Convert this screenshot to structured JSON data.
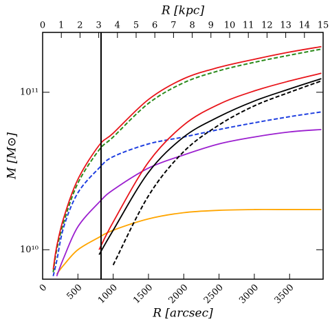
{
  "chart_data": {
    "type": "line",
    "xlabel": "R [arcsec]",
    "x2label": "R [kpc]",
    "ylabel": "M [M⊙]",
    "ylog": true,
    "xlim": [
      0,
      3975
    ],
    "xticks": [
      0,
      500,
      1000,
      1500,
      2000,
      2500,
      3000,
      3500
    ],
    "x2lim": [
      0,
      15
    ],
    "x2ticks": [
      0,
      1,
      2,
      3,
      4,
      5,
      6,
      7,
      8,
      9,
      10,
      11,
      12,
      13,
      14,
      15
    ],
    "ylim": [
      6500000000.0,
      240000000000.0
    ],
    "yticks": [
      {
        "value": 10000000000.0,
        "label": "10¹⁰"
      },
      {
        "value": 100000000000.0,
        "label": "10¹¹"
      }
    ],
    "vline": 828,
    "x": [
      150,
      200,
      300,
      500,
      800,
      1000,
      1500,
      2000,
      2500,
      3000,
      3500,
      3950
    ],
    "series": [
      {
        "color": "#ffa500",
        "dash": false,
        "values": [
          null,
          7000000000.0,
          8000000000.0,
          10000000000.0,
          12000000000.0,
          13300000000.0,
          15700000000.0,
          17200000000.0,
          17800000000.0,
          18000000000.0,
          18000000000.0,
          18000000000.0
        ]
      },
      {
        "color": "#9b1fcf",
        "dash": false,
        "values": [
          null,
          6800000000.0,
          8900000000.0,
          14000000000.0,
          20000000000.0,
          24000000000.0,
          33000000000.0,
          40000000000.0,
          47000000000.0,
          52000000000.0,
          56000000000.0,
          58000000000.0
        ]
      },
      {
        "color": "#1f3fe0",
        "dash": true,
        "values": [
          6800000000.0,
          8500000000.0,
          14000000000.0,
          23000000000.0,
          33000000000.0,
          39000000000.0,
          47000000000.0,
          52000000000.0,
          58000000000.0,
          64000000000.0,
          70000000000.0,
          75000000000.0
        ]
      },
      {
        "color": "#000000",
        "dash": true,
        "values": [
          null,
          null,
          null,
          null,
          null,
          8000000000.0,
          22000000000.0,
          42000000000.0,
          62000000000.0,
          82000000000.0,
          100000000000.0,
          118000000000.0
        ]
      },
      {
        "color": "#000000",
        "dash": false,
        "values": [
          null,
          null,
          null,
          null,
          9300000000.0,
          13300000000.0,
          31000000000.0,
          52000000000.0,
          70000000000.0,
          88000000000.0,
          105000000000.0,
          122000000000.0
        ]
      },
      {
        "color": "#e8141a",
        "dash": false,
        "values": [
          null,
          null,
          null,
          null,
          10000000000.0,
          15000000000.0,
          36000000000.0,
          62000000000.0,
          84000000000.0,
          102000000000.0,
          118000000000.0,
          132000000000.0
        ]
      },
      {
        "color": "#2a8a1a",
        "dash": true,
        "values": [
          7200000000.0,
          10000000000.0,
          15000000000.0,
          26500000000.0,
          43000000000.0,
          52000000000.0,
          85000000000.0,
          115000000000.0,
          137000000000.0,
          155000000000.0,
          172000000000.0,
          188000000000.0
        ]
      },
      {
        "color": "#e8141a",
        "dash": false,
        "values": [
          7500000000.0,
          10500000000.0,
          16000000000.0,
          28000000000.0,
          46000000000.0,
          55000000000.0,
          90000000000.0,
          122000000000.0,
          144000000000.0,
          162000000000.0,
          180000000000.0,
          195000000000.0
        ]
      }
    ]
  }
}
